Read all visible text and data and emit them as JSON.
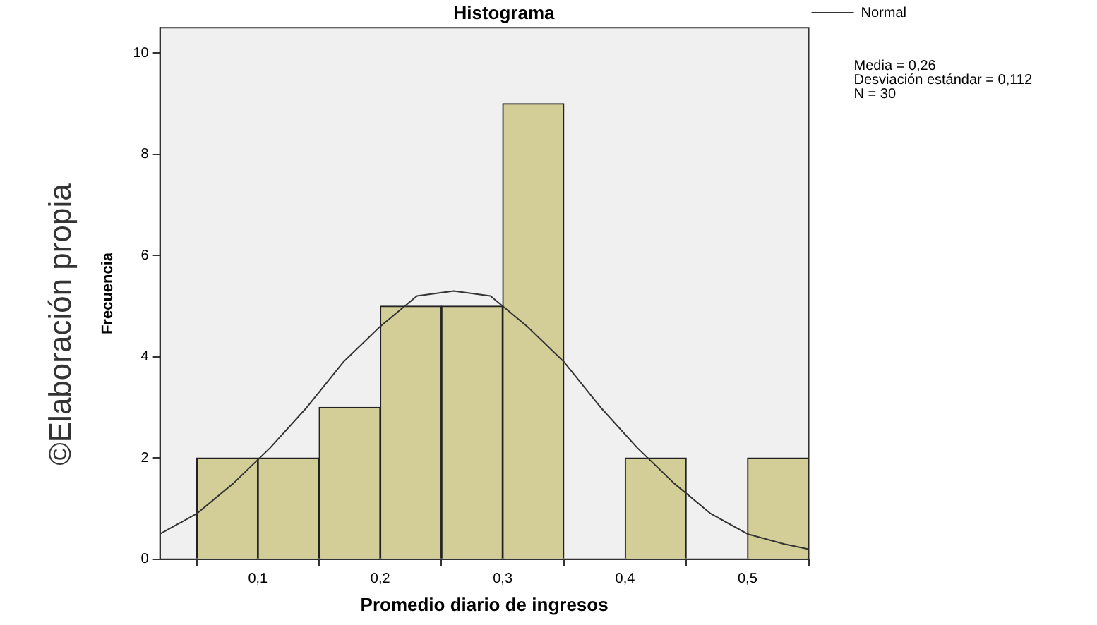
{
  "chart_data": {
    "type": "histogram",
    "title": "Histograma",
    "xlabel": "Promedio diario de ingresos",
    "ylabel": "Frecuencia",
    "bins": [
      0.05,
      0.1,
      0.15,
      0.2,
      0.25,
      0.3,
      0.35,
      0.4,
      0.45,
      0.5,
      0.55
    ],
    "values": [
      2,
      2,
      3,
      5,
      5,
      9,
      0,
      2,
      0,
      2
    ],
    "color": "#d3cd98",
    "series": [
      {
        "name": "Normal",
        "type": "line",
        "color": "#333333",
        "x": [
          0.02,
          0.05,
          0.08,
          0.11,
          0.14,
          0.17,
          0.2,
          0.23,
          0.26,
          0.29,
          0.32,
          0.35,
          0.38,
          0.41,
          0.44,
          0.47,
          0.5,
          0.53,
          0.55
        ],
        "values": [
          0.5,
          0.9,
          1.5,
          2.2,
          3.0,
          3.9,
          4.6,
          5.2,
          5.3,
          5.2,
          4.6,
          3.9,
          3.0,
          2.2,
          1.5,
          0.9,
          0.5,
          0.3,
          0.2
        ]
      }
    ],
    "xlim": [
      0.02,
      0.55
    ],
    "xticks": [
      {
        "value": 0.1,
        "label": "0,1"
      },
      {
        "value": 0.2,
        "label": "0,2"
      },
      {
        "value": 0.3,
        "label": "0,3"
      },
      {
        "value": 0.4,
        "label": "0,4"
      },
      {
        "value": 0.5,
        "label": "0,5"
      }
    ],
    "ylim": [
      0,
      10.5
    ],
    "yticks": [
      0,
      2,
      4,
      6,
      8,
      10
    ],
    "grid": false,
    "legend": "top right",
    "marker": "none",
    "line_style": "solid",
    "annotations": [
      "Media = 0,26",
      "Desviación estándar = 0,112",
      "N = 30",
      "©Elaboración propia"
    ]
  }
}
